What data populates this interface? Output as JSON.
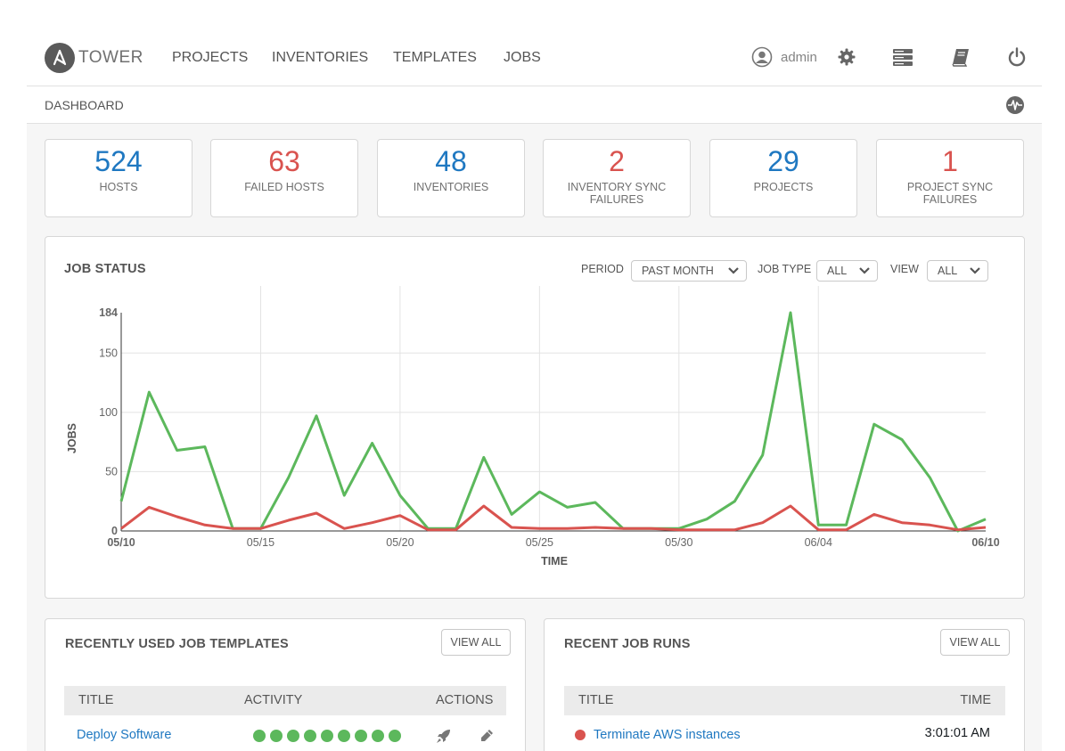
{
  "nav": {
    "brand": "TOWER",
    "links": [
      "PROJECTS",
      "INVENTORIES",
      "TEMPLATES",
      "JOBS"
    ],
    "user": "admin"
  },
  "breadcrumb": "DASHBOARD",
  "counts": [
    {
      "value": "524",
      "label": "HOSTS",
      "color": "#1f78c1"
    },
    {
      "value": "63",
      "label": "FAILED HOSTS",
      "color": "#d9534f"
    },
    {
      "value": "48",
      "label": "INVENTORIES",
      "color": "#1f78c1"
    },
    {
      "value": "2",
      "label": "INVENTORY SYNC FAILURES",
      "color": "#d9534f"
    },
    {
      "value": "29",
      "label": "PROJECTS",
      "color": "#1f78c1"
    },
    {
      "value": "1",
      "label": "PROJECT SYNC FAILURES",
      "color": "#d9534f"
    }
  ],
  "job_status": {
    "title": "JOB STATUS",
    "period_label": "PERIOD",
    "period_value": "PAST MONTH",
    "job_type_label": "JOB TYPE",
    "job_type_value": "ALL",
    "view_label": "VIEW",
    "view_value": "ALL"
  },
  "chart_data": {
    "type": "line",
    "xlabel": "TIME",
    "ylabel": "JOBS",
    "ylim": [
      0,
      184
    ],
    "yticks": [
      0,
      50,
      100,
      150,
      184
    ],
    "xticks": [
      "05/10",
      "05/15",
      "05/20",
      "05/25",
      "05/30",
      "06/04",
      "06/10"
    ],
    "x": [
      "05/10",
      "05/11",
      "05/12",
      "05/13",
      "05/14",
      "05/15",
      "05/16",
      "05/17",
      "05/18",
      "05/19",
      "05/20",
      "05/21",
      "05/22",
      "05/23",
      "05/24",
      "05/25",
      "05/26",
      "05/27",
      "05/28",
      "05/29",
      "05/30",
      "05/31",
      "06/01",
      "06/02",
      "06/03",
      "06/04",
      "06/05",
      "06/06",
      "06/07",
      "06/08",
      "06/09",
      "06/10"
    ],
    "grid": true,
    "series": [
      {
        "color": "#5cb85c",
        "values": [
          25,
          117,
          68,
          71,
          2,
          2,
          45,
          97,
          30,
          74,
          30,
          2,
          2,
          62,
          14,
          33,
          20,
          24,
          2,
          2,
          2,
          10,
          25,
          64,
          184,
          5,
          5,
          90,
          77,
          45,
          0,
          10
        ]
      },
      {
        "color": "#d9534f",
        "values": [
          2,
          20,
          12,
          5,
          2,
          2,
          9,
          15,
          2,
          7,
          13,
          1,
          1,
          21,
          3,
          2,
          2,
          3,
          2,
          2,
          1,
          1,
          1,
          7,
          21,
          1,
          1,
          14,
          7,
          5,
          1,
          3
        ]
      }
    ]
  },
  "recent_templates": {
    "title": "RECENTLY USED JOB TEMPLATES",
    "view_all": "VIEW ALL",
    "columns": [
      "TITLE",
      "ACTIVITY",
      "ACTIONS"
    ],
    "rows": [
      {
        "title": "Deploy Software",
        "activity": [
          "success",
          "success",
          "success",
          "success",
          "success",
          "success",
          "success",
          "success",
          "success"
        ]
      }
    ]
  },
  "recent_jobs": {
    "title": "RECENT JOB RUNS",
    "view_all": "VIEW ALL",
    "columns": [
      "TITLE",
      "TIME"
    ],
    "rows": [
      {
        "status": "failed",
        "title": "Terminate AWS instances",
        "time": "3:01:01 AM"
      }
    ]
  }
}
